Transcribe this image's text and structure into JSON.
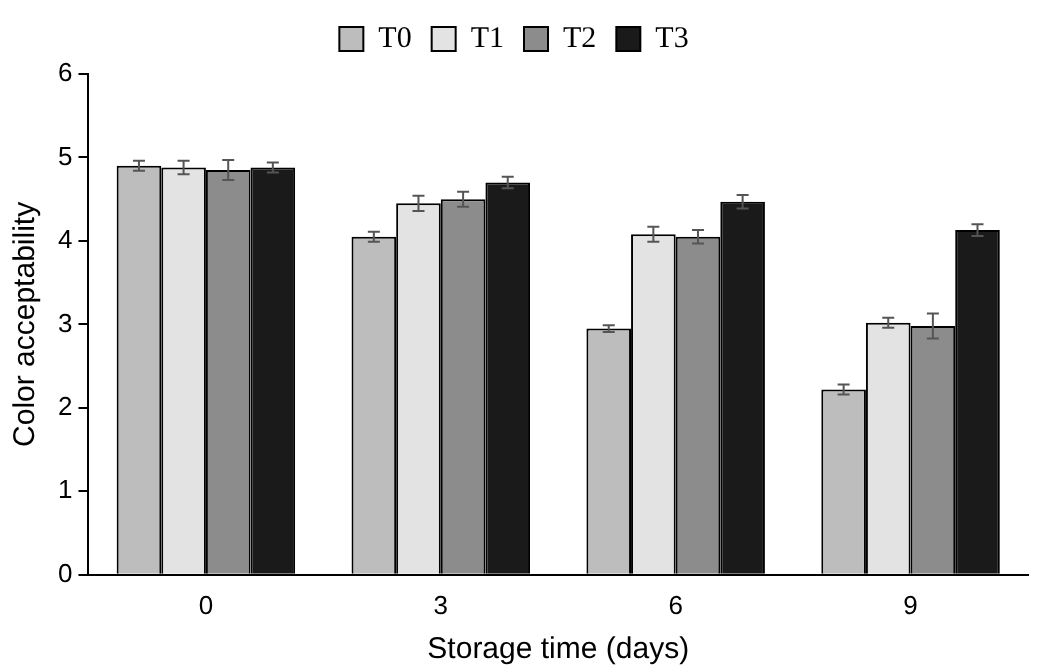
{
  "chart_data": {
    "type": "bar",
    "xlabel": "Storage time (days)",
    "ylabel": "Color acceptability",
    "categories": [
      "0",
      "3",
      "6",
      "9"
    ],
    "series": [
      {
        "name": "T0",
        "color": "#bdbdbd",
        "values": [
          4.9,
          4.05,
          2.95,
          2.22
        ],
        "errors": [
          0.06,
          0.06,
          0.04,
          0.06
        ]
      },
      {
        "name": "T1",
        "color": "#e3e3e3",
        "values": [
          4.88,
          4.45,
          4.08,
          3.02
        ],
        "errors": [
          0.08,
          0.09,
          0.09,
          0.06
        ]
      },
      {
        "name": "T2",
        "color": "#8c8c8c",
        "values": [
          4.85,
          4.5,
          4.05,
          2.98
        ],
        "errors": [
          0.12,
          0.09,
          0.08,
          0.15
        ]
      },
      {
        "name": "T3",
        "color": "#1a1a1a",
        "values": [
          4.88,
          4.7,
          4.47,
          4.13
        ],
        "errors": [
          0.06,
          0.07,
          0.08,
          0.07
        ]
      }
    ],
    "ylim": [
      0,
      6
    ],
    "yticks": [
      0,
      1,
      2,
      3,
      4,
      5,
      6
    ],
    "grid": false,
    "legend": "top"
  }
}
